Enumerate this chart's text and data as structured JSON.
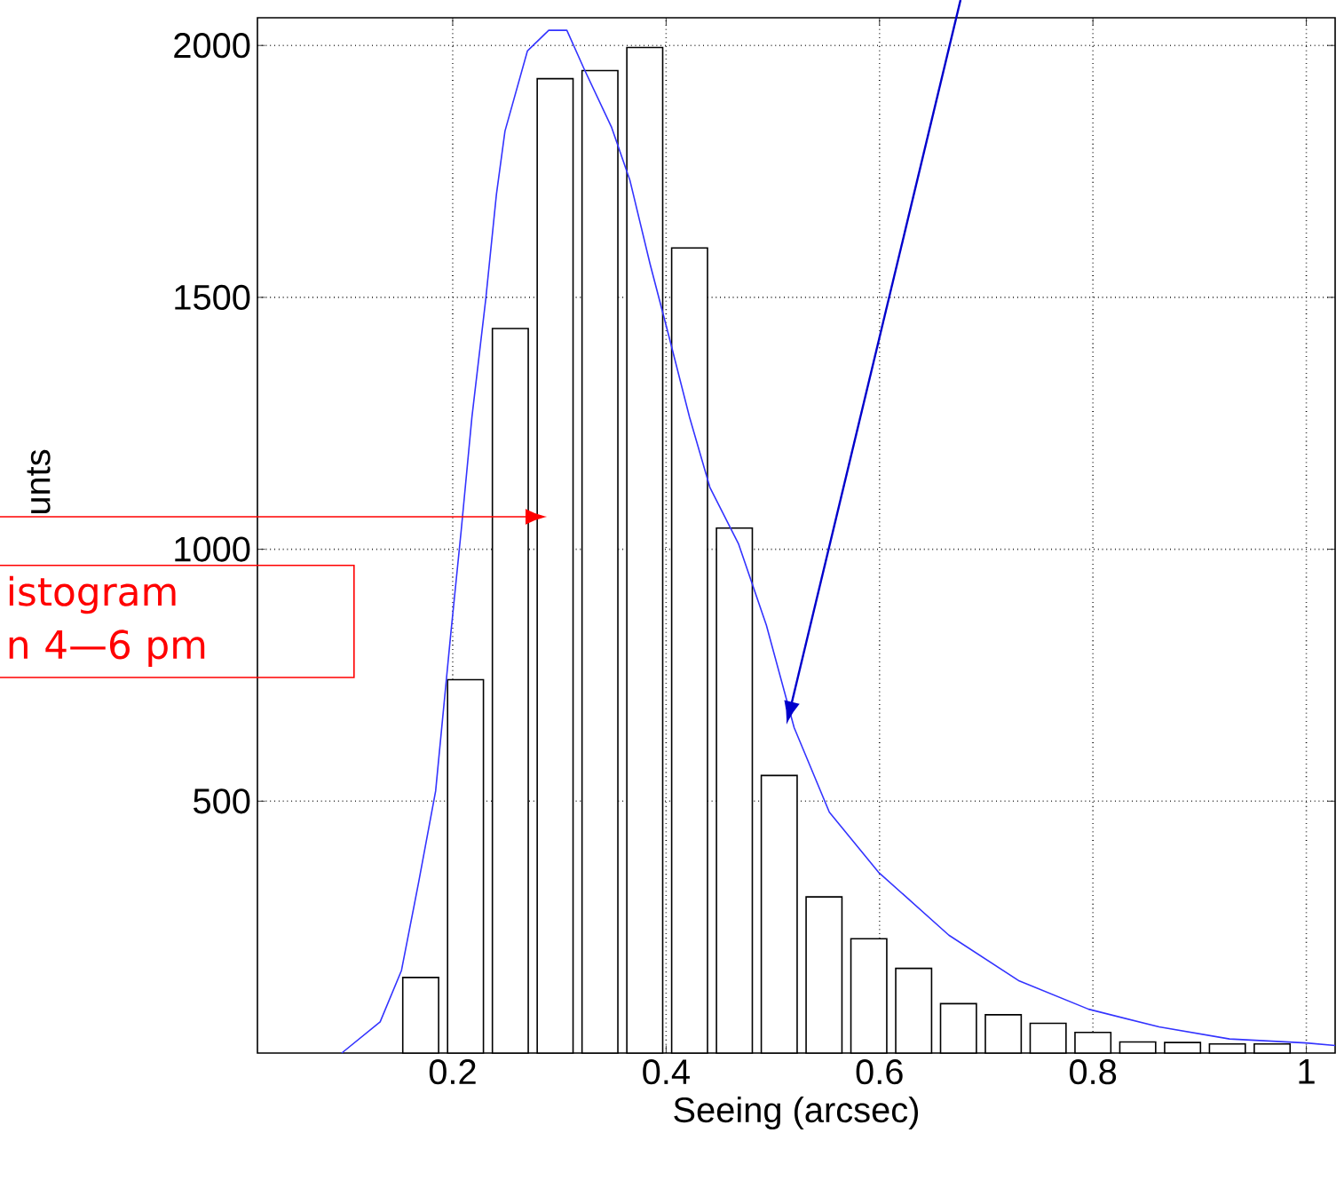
{
  "chart_data": {
    "type": "histogram",
    "xlabel": "Seeing (arcsec)",
    "ylabel": "unts",
    "xlim": [
      0.017,
      1.027
    ],
    "ylim": [
      0,
      2055
    ],
    "xticks": [
      0.2,
      0.4,
      0.6,
      0.8,
      1
    ],
    "yticks": [
      500,
      1000,
      1500,
      2000
    ],
    "grid": true,
    "marker": "none",
    "series": [
      {
        "color": "#000000",
        "bins": [
          0.149,
          0.191,
          0.233,
          0.275,
          0.317,
          0.359,
          0.401,
          0.443,
          0.485,
          0.527,
          0.569,
          0.611,
          0.653,
          0.695,
          0.737,
          0.779,
          0.821,
          0.863,
          0.905,
          0.947,
          0.989
        ],
        "values": [
          150,
          741,
          1438,
          1934,
          1950,
          1996,
          1598,
          1042,
          551,
          310,
          227,
          168,
          98,
          76,
          59,
          41,
          22,
          21,
          18,
          18
        ]
      },
      {
        "type": "line",
        "color": "#3333ff",
        "x": [
          0.096,
          0.132,
          0.152,
          0.168,
          0.184,
          0.198,
          0.208,
          0.218,
          0.231,
          0.241,
          0.249,
          0.27,
          0.29,
          0.307,
          0.323,
          0.349,
          0.366,
          0.385,
          0.402,
          0.422,
          0.441,
          0.468,
          0.494,
          0.52,
          0.553,
          0.599,
          0.665,
          0.731,
          0.796,
          0.862,
          0.928,
          1.0,
          1.027
        ],
        "values": [
          0,
          62,
          164,
          338,
          520,
          828,
          1038,
          1262,
          1497,
          1705,
          1830,
          1989,
          2030,
          2030,
          1954,
          1837,
          1733,
          1566,
          1428,
          1262,
          1123,
          1010,
          849,
          646,
          478,
          359,
          234,
          143,
          87,
          52,
          28,
          20,
          15
        ]
      }
    ],
    "annotations": [
      "istogram",
      "n 4—6 pm"
    ]
  }
}
